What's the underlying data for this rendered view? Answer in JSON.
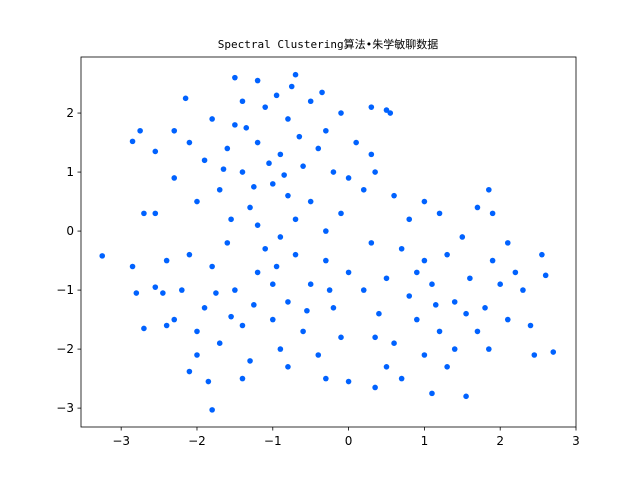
{
  "chart_data": {
    "type": "scatter",
    "title": "Spectral Clustering算法•朱学敏聊数据",
    "color": "#0062ff",
    "x": [
      -3.25,
      -2.85,
      -2.8,
      -2.7,
      -2.75,
      -2.85,
      -2.55,
      -2.7,
      -2.55,
      -2.4,
      -2.45,
      -2.55,
      -1.8,
      -1.85,
      -2.1,
      -0.7,
      -1.5,
      -1.2,
      -0.75,
      0.5,
      0.55,
      -2.15,
      2.7,
      2.45,
      2.55,
      2.6,
      1.55,
      1.1,
      0.35,
      0.0,
      -0.3,
      1.85,
      2.3,
      2.4,
      1.9,
      2.1,
      -1.5,
      -1.2,
      -0.9,
      -0.6,
      -1.4,
      -1.0,
      -0.8,
      -1.7,
      -1.3,
      -0.5,
      -0.4,
      -0.2,
      -1.9,
      -2.0,
      -1.1,
      -0.8,
      -0.3,
      -1.6,
      -1.2,
      -0.7,
      -1.8,
      -2.1,
      -1.4,
      -0.95,
      -0.5,
      -0.1,
      0.1,
      0.3,
      0.2,
      -0.1,
      -2.3,
      -2.3,
      -1.55,
      -0.9,
      -0.3,
      0.0,
      -1.05,
      -0.65,
      -1.35,
      -0.85,
      -1.25,
      -1.65,
      0.35,
      0.3,
      -0.35,
      -1.5,
      -1.2,
      -0.8,
      -0.5,
      -1.0,
      -1.4,
      -0.6,
      -1.8,
      -1.9,
      -2.1,
      -2.2,
      -0.3,
      -0.2,
      -1.1,
      -0.9,
      -1.3,
      -0.4,
      -1.7,
      -2.0,
      -1.6,
      -0.7,
      -1.0,
      -1.25,
      -0.55,
      -1.75,
      -2.3,
      -2.4,
      -0.1,
      0.0,
      -1.4,
      -0.8,
      -2.0,
      -1.55,
      -0.95,
      -0.25,
      0.5,
      0.8,
      1.1,
      1.4,
      1.0,
      0.7,
      1.3,
      1.6,
      0.9,
      1.2,
      0.4,
      1.8,
      2.0,
      1.5,
      0.6,
      1.0,
      1.4,
      0.3,
      0.8,
      1.2,
      1.7,
      0.2,
      0.9,
      1.55,
      1.9,
      2.1,
      0.5,
      1.3,
      0.7,
      1.7,
      1.0,
      0.6,
      2.2,
      1.85,
      0.35,
      1.15
    ],
    "values": [
      -0.42,
      -0.6,
      -1.05,
      -1.65,
      1.7,
      1.52,
      1.35,
      0.3,
      0.3,
      -1.6,
      -1.05,
      -0.95,
      -3.03,
      -2.55,
      -2.38,
      2.65,
      2.6,
      2.55,
      2.45,
      2.05,
      2.0,
      2.25,
      -2.05,
      -2.1,
      -0.4,
      -0.75,
      -2.8,
      -2.75,
      -2.65,
      -2.55,
      -2.5,
      0.7,
      -1.0,
      -1.6,
      0.3,
      -0.2,
      1.8,
      1.5,
      1.3,
      1.1,
      1.0,
      0.8,
      0.6,
      0.7,
      0.4,
      0.5,
      1.4,
      1.0,
      1.2,
      0.5,
      2.1,
      1.9,
      1.7,
      1.4,
      0.1,
      0.2,
      1.9,
      1.5,
      2.2,
      2.3,
      2.2,
      2.0,
      1.5,
      1.3,
      0.7,
      0.3,
      0.9,
      1.7,
      0.2,
      -0.1,
      0.0,
      0.9,
      1.15,
      1.6,
      1.75,
      0.95,
      0.75,
      1.05,
      1.0,
      2.1,
      2.35,
      -1.0,
      -0.7,
      -1.2,
      -0.9,
      -1.5,
      -1.6,
      -1.7,
      -0.6,
      -1.3,
      -0.4,
      -1.0,
      -0.5,
      -1.3,
      -0.3,
      -2.0,
      -2.2,
      -2.1,
      -1.9,
      -1.7,
      -0.2,
      -0.4,
      -0.9,
      -1.25,
      -1.35,
      -1.05,
      -1.5,
      -0.5,
      -1.8,
      -0.7,
      -2.5,
      -2.3,
      -2.1,
      -1.45,
      -0.6,
      -1.0,
      -0.8,
      -1.1,
      -0.9,
      -1.2,
      -0.5,
      -0.3,
      -0.4,
      -0.8,
      -1.5,
      -1.7,
      -1.4,
      -1.3,
      -0.9,
      -0.1,
      -1.9,
      -2.1,
      -2.0,
      -0.2,
      0.2,
      0.3,
      -1.7,
      -1.0,
      -0.7,
      -1.4,
      -0.5,
      -1.5,
      -2.3,
      -2.3,
      -2.5,
      0.4,
      0.5,
      0.6,
      -0.7,
      -2.0,
      -1.8,
      -1.25
    ],
    "xlim": [
      -3.53,
      3.0
    ],
    "ylim": [
      -3.32,
      2.95
    ],
    "xticks": [
      {
        "value": -3,
        "label": "−3"
      },
      {
        "value": -2,
        "label": "−2"
      },
      {
        "value": -1,
        "label": "−1"
      },
      0,
      1,
      2,
      3
    ],
    "yticks": [
      {
        "value": -3,
        "label": "−3"
      },
      {
        "value": -2,
        "label": "−2"
      },
      {
        "value": -1,
        "label": "−1"
      },
      0,
      1,
      2
    ]
  }
}
